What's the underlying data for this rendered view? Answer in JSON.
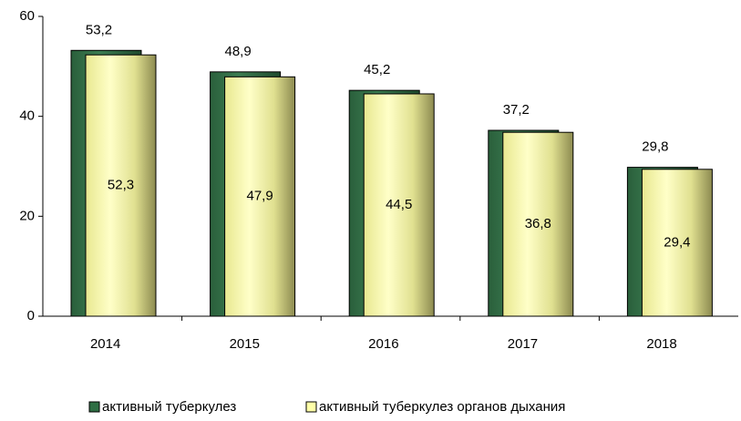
{
  "chart_data": {
    "type": "bar",
    "categories": [
      "2014",
      "2015",
      "2016",
      "2017",
      "2018"
    ],
    "series": [
      {
        "name": "активный туберкулез",
        "color": "#2f6e44",
        "values": [
          53.2,
          48.9,
          45.2,
          37.2,
          29.8
        ],
        "value_labels": [
          "53,2",
          "48,9",
          "45,2",
          "37,2",
          "29,8"
        ]
      },
      {
        "name": "активный туберкулез органов дыхания",
        "color": "#ffffa8",
        "values": [
          52.3,
          47.9,
          44.5,
          36.8,
          29.4
        ],
        "value_labels": [
          "52,3",
          "47,9",
          "44,5",
          "36,8",
          "29,4"
        ]
      }
    ],
    "ylim": [
      0,
      60
    ],
    "yticks": [
      0,
      20,
      40,
      60
    ],
    "legend": "bottom"
  }
}
